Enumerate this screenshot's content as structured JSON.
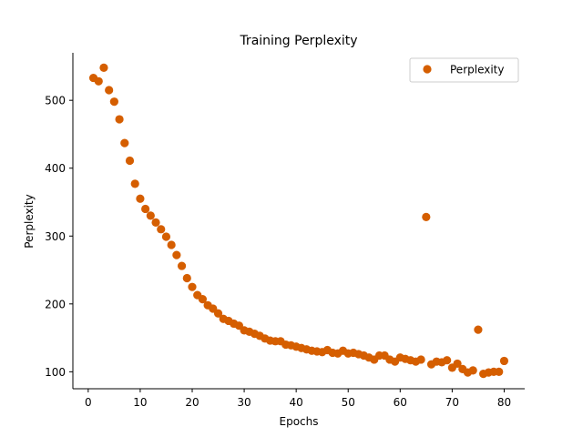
{
  "chart_data": {
    "type": "scatter",
    "title": "Training Perplexity",
    "xlabel": "Epochs",
    "ylabel": "Perplexity",
    "xlim": [
      -2.95,
      83.95
    ],
    "ylim": [
      75,
      570
    ],
    "xticks": [
      0,
      10,
      20,
      30,
      40,
      50,
      60,
      70,
      80
    ],
    "yticks": [
      100,
      200,
      300,
      400,
      500
    ],
    "legend_position": "top-right",
    "grid": false,
    "series": [
      {
        "name": "Perplexity",
        "color": "#D55E00",
        "marker": "circle",
        "x": [
          1,
          2,
          3,
          4,
          5,
          6,
          7,
          8,
          9,
          10,
          11,
          12,
          13,
          14,
          15,
          16,
          17,
          18,
          19,
          20,
          21,
          22,
          23,
          24,
          25,
          26,
          27,
          28,
          29,
          30,
          31,
          32,
          33,
          34,
          35,
          36,
          37,
          38,
          39,
          40,
          41,
          42,
          43,
          44,
          45,
          46,
          47,
          48,
          49,
          50,
          51,
          52,
          53,
          54,
          55,
          56,
          57,
          58,
          59,
          60,
          61,
          62,
          63,
          64,
          65,
          66,
          67,
          68,
          69,
          70,
          71,
          72,
          73,
          74,
          75,
          76,
          77,
          78,
          79,
          80
        ],
        "y": [
          533,
          528,
          548,
          515,
          498,
          472,
          437,
          411,
          377,
          355,
          340,
          330,
          320,
          310,
          299,
          287,
          272,
          256,
          238,
          225,
          213,
          207,
          198,
          193,
          186,
          178,
          175,
          171,
          168,
          161,
          159,
          156,
          153,
          149,
          146,
          145,
          145,
          140,
          139,
          137,
          135,
          133,
          131,
          130,
          129,
          132,
          128,
          127,
          131,
          127,
          128,
          126,
          124,
          121,
          118,
          124,
          124,
          118,
          115,
          121,
          119,
          117,
          115,
          118,
          328,
          111,
          115,
          114,
          117,
          106,
          112,
          104,
          99,
          102,
          162,
          97,
          99,
          100,
          100,
          116
        ]
      }
    ]
  }
}
